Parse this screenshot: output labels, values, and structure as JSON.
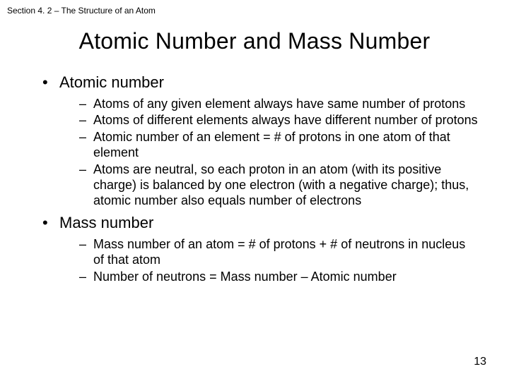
{
  "header": "Section 4. 2 – The Structure of an Atom",
  "title": "Atomic Number and Mass Number",
  "bullets": [
    {
      "label": "Atomic number",
      "sub": [
        "Atoms of any given element always have same number of protons",
        "Atoms of different elements always have different number of protons",
        "Atomic number of an element = # of protons in one atom of that element",
        "Atoms are neutral, so each proton in an atom (with its positive charge) is balanced by one electron (with a negative charge); thus, atomic number also equals number of electrons"
      ]
    },
    {
      "label": "Mass number",
      "sub": [
        "Mass number of an atom = # of protons + # of neutrons in nucleus of that atom",
        "Number of neutrons = Mass number – Atomic number"
      ]
    }
  ],
  "pagenum": "13"
}
